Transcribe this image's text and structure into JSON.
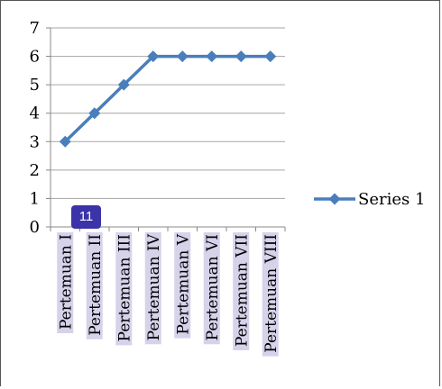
{
  "page_badge": "11",
  "colors": {
    "series": "#4a7ebb",
    "grid": "#a6a6a6",
    "highlight": "#d6d2ea",
    "badge": "#3b33a8"
  },
  "chart_data": {
    "type": "line",
    "categories": [
      "Pertemuan I",
      "Pertemuan II",
      "Pertemuan III",
      "Pertemuan IV",
      "Pertemuan V",
      "Pertemuan VI",
      "Pertemuan VII",
      "Pertemuan VIII"
    ],
    "series": [
      {
        "name": "Series 1",
        "values": [
          3,
          4,
          5,
          6,
          6,
          6,
          6,
          6
        ],
        "marker": "diamond"
      }
    ],
    "title": "",
    "xlabel": "",
    "ylabel": "",
    "ylim": [
      0,
      7
    ],
    "yticks": [
      0,
      1,
      2,
      3,
      4,
      5,
      6,
      7
    ],
    "grid": true,
    "legend": "right"
  }
}
